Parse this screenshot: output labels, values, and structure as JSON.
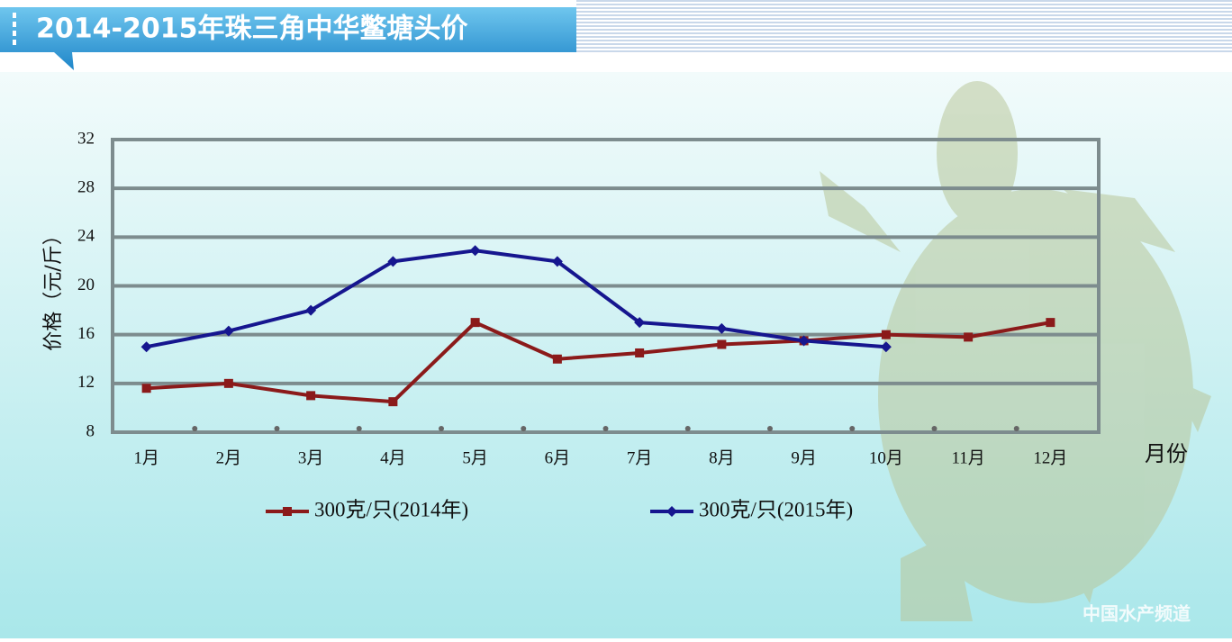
{
  "chart_data": {
    "type": "line",
    "title": "2014-2015年珠三角中华鳖塘头价",
    "y_label": "价格（元/斤）",
    "x_label": "月份",
    "categories": [
      "1月",
      "2月",
      "3月",
      "4月",
      "5月",
      "6月",
      "7月",
      "8月",
      "9月",
      "10月",
      "11月",
      "12月"
    ],
    "series": [
      {
        "name": "300克/只(2014年)",
        "color": "#8b1a1a",
        "values": [
          11.6,
          12,
          11,
          10.5,
          17,
          14,
          14.5,
          15.2,
          15.5,
          16,
          15.8,
          17
        ]
      },
      {
        "name": "300克/只(2015年)",
        "color": "#16168f",
        "values": [
          15,
          16.3,
          18,
          22,
          22.9,
          22,
          17,
          16.5,
          15.5,
          15,
          null,
          null
        ]
      }
    ],
    "ylim": [
      8,
      32
    ],
    "yticks": [
      8,
      12,
      16,
      20,
      24,
      28,
      32
    ],
    "grid": true,
    "watermark": "中国水产频道"
  }
}
